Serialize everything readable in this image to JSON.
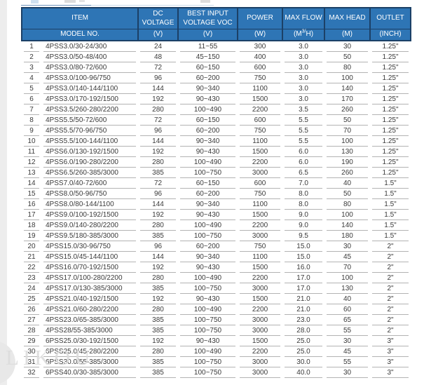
{
  "watermark": {
    "text": "LIKOU"
  },
  "colors": {
    "header_bg": "#2e75b5",
    "header_border": "#1c4066",
    "row_divider": "#b3b3b3",
    "body_text": "#3a3a3a",
    "page_margin": "#ededed"
  },
  "table": {
    "header": {
      "item": "ITEM",
      "model_no": "MODEL NO.",
      "dc_voltage": "DC VOLTAGE",
      "dc_unit": "(V)",
      "voc": "BEST INPUT VOLTAGE VOC",
      "voc_unit": "(V)",
      "power": "POWER",
      "power_unit": "(W)",
      "max_flow": "MAX FLOW",
      "max_flow_unit_prefix": "(M",
      "max_flow_unit_sup": "3/",
      "max_flow_unit_suffix": "H)",
      "max_head": "MAX HEAD",
      "max_head_unit": "(M)",
      "outlet": "OUTLET",
      "outlet_unit": "(INCH)"
    },
    "rows": [
      {
        "no": "1",
        "model": "4PSS3.0/30-24/300",
        "dc": "24",
        "voc": "11~55",
        "power": "300",
        "flow": "3.0",
        "head": "30",
        "outlet": "1.25\""
      },
      {
        "no": "2",
        "model": "4PSS3.0/50-48/400",
        "dc": "48",
        "voc": "45~150",
        "power": "400",
        "flow": "3.0",
        "head": "50",
        "outlet": "1.25\""
      },
      {
        "no": "3",
        "model": "4PSS3.0/80-72/600",
        "dc": "72",
        "voc": "60~150",
        "power": "600",
        "flow": "3.0",
        "head": "80",
        "outlet": "1.25\""
      },
      {
        "no": "4",
        "model": "4PSS3.0/100-96/750",
        "dc": "96",
        "voc": "60~200",
        "power": "750",
        "flow": "3.0",
        "head": "100",
        "outlet": "1.25\""
      },
      {
        "no": "5",
        "model": "4PSS3.0/140-144/1100",
        "dc": "144",
        "voc": "90~340",
        "power": "1100",
        "flow": "3.0",
        "head": "140",
        "outlet": "1.25\""
      },
      {
        "no": "6",
        "model": "4PSS3.0/170-192/1500",
        "dc": "192",
        "voc": "90~430",
        "power": "1500",
        "flow": "3.0",
        "head": "170",
        "outlet": "1.25\""
      },
      {
        "no": "7",
        "model": "4PSS3.5/260-280/2200",
        "dc": "280",
        "voc": "100~490",
        "power": "2200",
        "flow": "3.5",
        "head": "260",
        "outlet": "1.25\""
      },
      {
        "no": "8",
        "model": "4PSS5.5/50-72/600",
        "dc": "72",
        "voc": "60~150",
        "power": "600",
        "flow": "5.5",
        "head": "50",
        "outlet": "1.25\""
      },
      {
        "no": "9",
        "model": "4PSS5.5/70-96/750",
        "dc": "96",
        "voc": "60~200",
        "power": "750",
        "flow": "5.5",
        "head": "70",
        "outlet": "1.25\""
      },
      {
        "no": "10",
        "model": "4PSS5.5/100-144/1100",
        "dc": "144",
        "voc": "90~340",
        "power": "1100",
        "flow": "5.5",
        "head": "100",
        "outlet": "1.25\""
      },
      {
        "no": "11",
        "model": "4PSS6.0/130-192/1500",
        "dc": "192",
        "voc": "90~430",
        "power": "1500",
        "flow": "6.0",
        "head": "130",
        "outlet": "1.25\""
      },
      {
        "no": "12",
        "model": "4PSS6.0/190-280/2200",
        "dc": "280",
        "voc": "100~490",
        "power": "2200",
        "flow": "6.0",
        "head": "190",
        "outlet": "1.25\""
      },
      {
        "no": "13",
        "model": "4PSS6.5/260-385/3000",
        "dc": "385",
        "voc": "100~750",
        "power": "3000",
        "flow": "6.5",
        "head": "260",
        "outlet": "1.25\""
      },
      {
        "no": "14",
        "model": "4PSS7.0/40-72/600",
        "dc": "72",
        "voc": "60~150",
        "power": "600",
        "flow": "7.0",
        "head": "40",
        "outlet": "1.5\""
      },
      {
        "no": "15",
        "model": "4PSS8.0/50-96/750",
        "dc": "96",
        "voc": "60~200",
        "power": "750",
        "flow": "8.0",
        "head": "50",
        "outlet": "1.5\""
      },
      {
        "no": "16",
        "model": "4PSS8.0/80-144/1100",
        "dc": "144",
        "voc": "90~340",
        "power": "1100",
        "flow": "8.0",
        "head": "80",
        "outlet": "1.5\""
      },
      {
        "no": "17",
        "model": "4PSS9.0/100-192/1500",
        "dc": "192",
        "voc": "90~430",
        "power": "1500",
        "flow": "9.0",
        "head": "100",
        "outlet": "1.5\""
      },
      {
        "no": "18",
        "model": "4PSS9.0/140-280/2200",
        "dc": "280",
        "voc": "100~490",
        "power": "2200",
        "flow": "9.0",
        "head": "140",
        "outlet": "1.5\""
      },
      {
        "no": "19",
        "model": "4PSS9.5/180-385/3000",
        "dc": "385",
        "voc": "100~750",
        "power": "3000",
        "flow": "9.5",
        "head": "180",
        "outlet": "1.5\""
      },
      {
        "no": "20",
        "model": "4PSS15.0/30-96/750",
        "dc": "96",
        "voc": "60~200",
        "power": "750",
        "flow": "15.0",
        "head": "30",
        "outlet": "2\""
      },
      {
        "no": "21",
        "model": "4PSS15.0/45-144/1100",
        "dc": "144",
        "voc": "90~340",
        "power": "1100",
        "flow": "15.0",
        "head": "45",
        "outlet": "2\""
      },
      {
        "no": "22",
        "model": "4PSS16.0/70-192/1500",
        "dc": "192",
        "voc": "90~430",
        "power": "1500",
        "flow": "16.0",
        "head": "70",
        "outlet": "2\""
      },
      {
        "no": "23",
        "model": "4PSS17.0/100-280/2200",
        "dc": "280",
        "voc": "100~490",
        "power": "2200",
        "flow": "17.0",
        "head": "100",
        "outlet": "2\""
      },
      {
        "no": "24",
        "model": "4PSS17.0/130-385/3000",
        "dc": "385",
        "voc": "100~750",
        "power": "3000",
        "flow": "17.0",
        "head": "130",
        "outlet": "2\""
      },
      {
        "no": "25",
        "model": "4PSS21.0/40-192/1500",
        "dc": "192",
        "voc": "90~430",
        "power": "1500",
        "flow": "21.0",
        "head": "40",
        "outlet": "2\""
      },
      {
        "no": "26",
        "model": "4PSS21.0/60-280/2200",
        "dc": "280",
        "voc": "100~490",
        "power": "2200",
        "flow": "21.0",
        "head": "60",
        "outlet": "2\""
      },
      {
        "no": "27",
        "model": "4PSS23.0/65-385/3000",
        "dc": "385",
        "voc": "100~750",
        "power": "3000",
        "flow": "23.0",
        "head": "65",
        "outlet": "2\""
      },
      {
        "no": "28",
        "model": "4PSS28/55-385/3000",
        "dc": "385",
        "voc": "100~750",
        "power": "3000",
        "flow": "28.0",
        "head": "55",
        "outlet": "2\""
      },
      {
        "no": "29",
        "model": "6PSS25.0/30-192/1500",
        "dc": "192",
        "voc": "90~430",
        "power": "1500",
        "flow": "25.0",
        "head": "30",
        "outlet": "3\""
      },
      {
        "no": "30",
        "model": "6PSS25.0/45-280/2200",
        "dc": "280",
        "voc": "100~490",
        "power": "2200",
        "flow": "25.0",
        "head": "45",
        "outlet": "3\""
      },
      {
        "no": "31",
        "model": "6PSS30.0/55-385/3000",
        "dc": "385",
        "voc": "100~750",
        "power": "3000",
        "flow": "30.0",
        "head": "55",
        "outlet": "3\""
      },
      {
        "no": "32",
        "model": "6PSS40.0/30-385/3000",
        "dc": "385",
        "voc": "100~750",
        "power": "3000",
        "flow": "40.0",
        "head": "30",
        "outlet": "3\""
      }
    ]
  }
}
